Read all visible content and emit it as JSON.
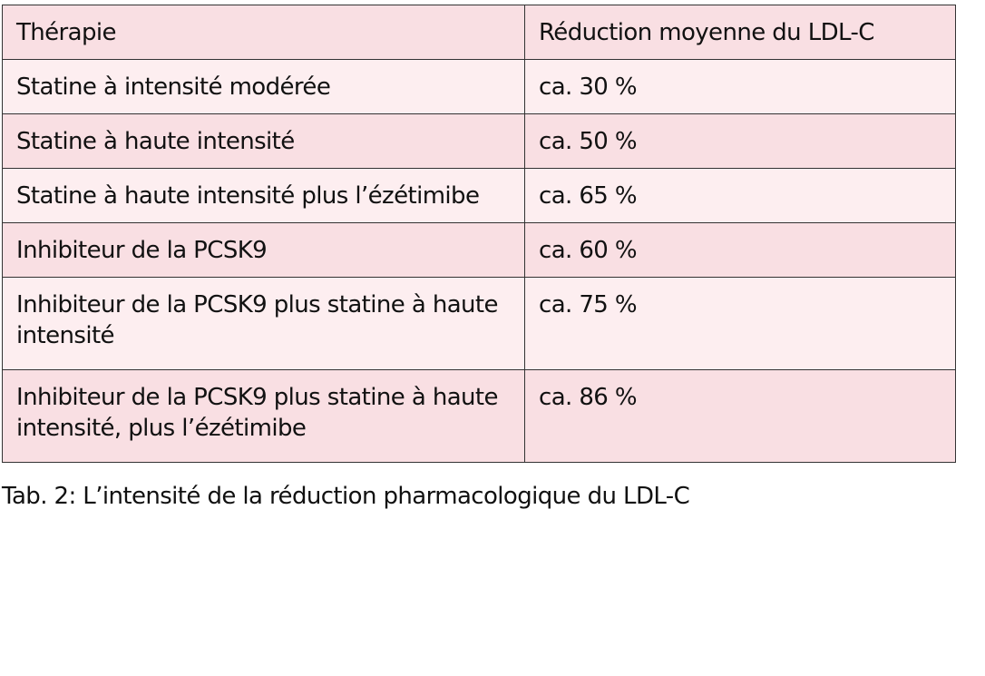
{
  "table": {
    "headers": [
      "Thérapie",
      "Réduction moyenne du LDL-C"
    ],
    "rows": [
      [
        "Statine à intensité modérée",
        "ca. 30 %"
      ],
      [
        "Statine à haute intensité",
        "ca. 50 %"
      ],
      [
        "Statine à haute intensité plus l’ézétimibe",
        "ca. 65 %"
      ],
      [
        "Inhibiteur de la PCSK9",
        "ca. 60 %"
      ],
      [
        "Inhibiteur de la PCSK9 plus statine à haute intensité",
        "ca. 75 %"
      ],
      [
        "Inhibiteur de la PCSK9 plus statine à haute intensité, plus l’ézétimibe",
        "ca. 86 %"
      ]
    ],
    "colors": {
      "dark_row": "#f9dfe3",
      "light_row": "#fdeef0",
      "border": "#333333"
    }
  },
  "caption": "Tab. 2: L’intensité de la réduction pharmacologique du LDL-C"
}
